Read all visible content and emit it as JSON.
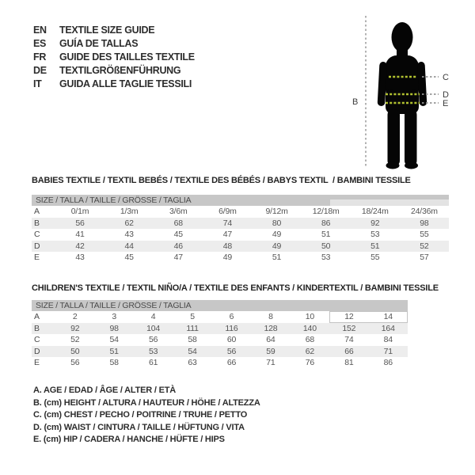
{
  "languages": {
    "items": [
      {
        "code": "EN",
        "label": "TEXTILE SIZE GUIDE"
      },
      {
        "code": "ES",
        "label": "GUÍA DE TALLAS"
      },
      {
        "code": "FR",
        "label": "GUIDE DES TAILLES TEXTILE"
      },
      {
        "code": "DE",
        "label": "TEXTILGRÖßENFÜHRUNG"
      },
      {
        "code": "IT",
        "label": "GUIDA ALLE TAGLIE TESSILI"
      }
    ]
  },
  "figure": {
    "labels": {
      "height": "B",
      "chest": "C",
      "waist": "D",
      "hip": "E"
    },
    "colors": {
      "silhouette": "#050505",
      "accent_dash": "#b2c230",
      "leader_dash": "#969696"
    }
  },
  "babies_table": {
    "section_title": "BABIES TEXTILE / TEXTIL BEBÉS / TEXTILE DES BÉBÉS / BABYS TEXTIL  / BAMBINI TESSILE",
    "header": "SIZE / TALLA / TAILLE / GRÖSSE / TAGLIA",
    "rows": [
      {
        "label": "A",
        "values": [
          "0/1m",
          "1/3m",
          "3/6m",
          "6/9m",
          "9/12m",
          "12/18m",
          "18/24m",
          "24/36m"
        ]
      },
      {
        "label": "B",
        "values": [
          "56",
          "62",
          "68",
          "74",
          "80",
          "86",
          "92",
          "98"
        ]
      },
      {
        "label": "C",
        "values": [
          "41",
          "43",
          "45",
          "47",
          "49",
          "51",
          "53",
          "55"
        ]
      },
      {
        "label": "D",
        "values": [
          "42",
          "44",
          "46",
          "48",
          "49",
          "50",
          "51",
          "52"
        ]
      },
      {
        "label": "E",
        "values": [
          "43",
          "45",
          "47",
          "49",
          "51",
          "53",
          "55",
          "57"
        ]
      }
    ]
  },
  "childrens_table": {
    "section_title": "CHILDREN'S TEXTILE / TEXTIL NIÑO/A / TEXTILE DES ENFANTS / KINDERTEXTIL / BAMBINI TESSILE",
    "header": "SIZE / TALLA / TAILLE / GRÖSSE / TAGLIA",
    "rows": [
      {
        "label": "A",
        "values": [
          "2",
          "3",
          "4",
          "5",
          "6",
          "8",
          "10",
          "12",
          "14"
        ]
      },
      {
        "label": "B",
        "values": [
          "92",
          "98",
          "104",
          "111",
          "116",
          "128",
          "140",
          "152",
          "164"
        ]
      },
      {
        "label": "C",
        "values": [
          "52",
          "54",
          "56",
          "58",
          "60",
          "64",
          "68",
          "74",
          "84"
        ]
      },
      {
        "label": "D",
        "values": [
          "50",
          "51",
          "53",
          "54",
          "56",
          "59",
          "62",
          "66",
          "71"
        ]
      },
      {
        "label": "E",
        "values": [
          "56",
          "58",
          "61",
          "63",
          "66",
          "71",
          "76",
          "81",
          "86"
        ]
      }
    ]
  },
  "legend": {
    "items": [
      "A. AGE / EDAD / ÂGE / ALTER / ETÀ",
      "B. (cm) HEIGHT / ALTURA / HAUTEUR / HÖHE / ALTEZZA",
      "C. (cm) CHEST / PECHO / POITRINE / TRUHE / PETTO",
      "D. (cm) WAIST / CINTURA / TAILLE / HÜFTUNG / VITA",
      "E. (cm) HIP / CADERA / HANCHE / HÜFTE / HIPS"
    ]
  },
  "colors": {
    "header_bar": "#c7c7c7",
    "row_stripe": "#ededed",
    "table_text": "#555555",
    "title_text": "#242424"
  }
}
